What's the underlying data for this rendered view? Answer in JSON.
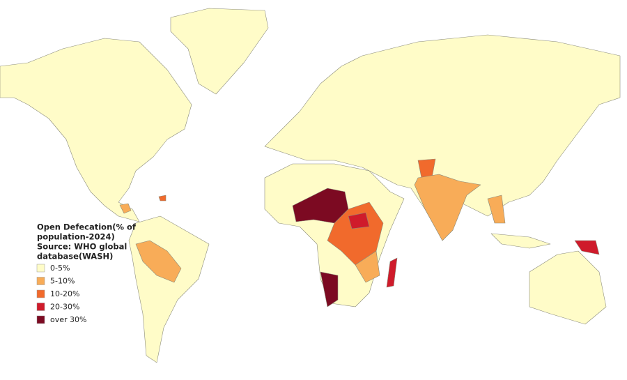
{
  "legend": {
    "title": [
      "Open Defecation(% of",
      "population-2024)",
      "Source: WHO global",
      "database(WASH)"
    ],
    "items": [
      {
        "label": "0-5%",
        "color": "#fffcc8"
      },
      {
        "label": "5-10%",
        "color": "#f8ac58"
      },
      {
        "label": "10-20%",
        "color": "#f16a2c"
      },
      {
        "label": "20-30%",
        "color": "#cf1b2b"
      },
      {
        "label": "over 30%",
        "color": "#7c0a22"
      }
    ]
  }
}
